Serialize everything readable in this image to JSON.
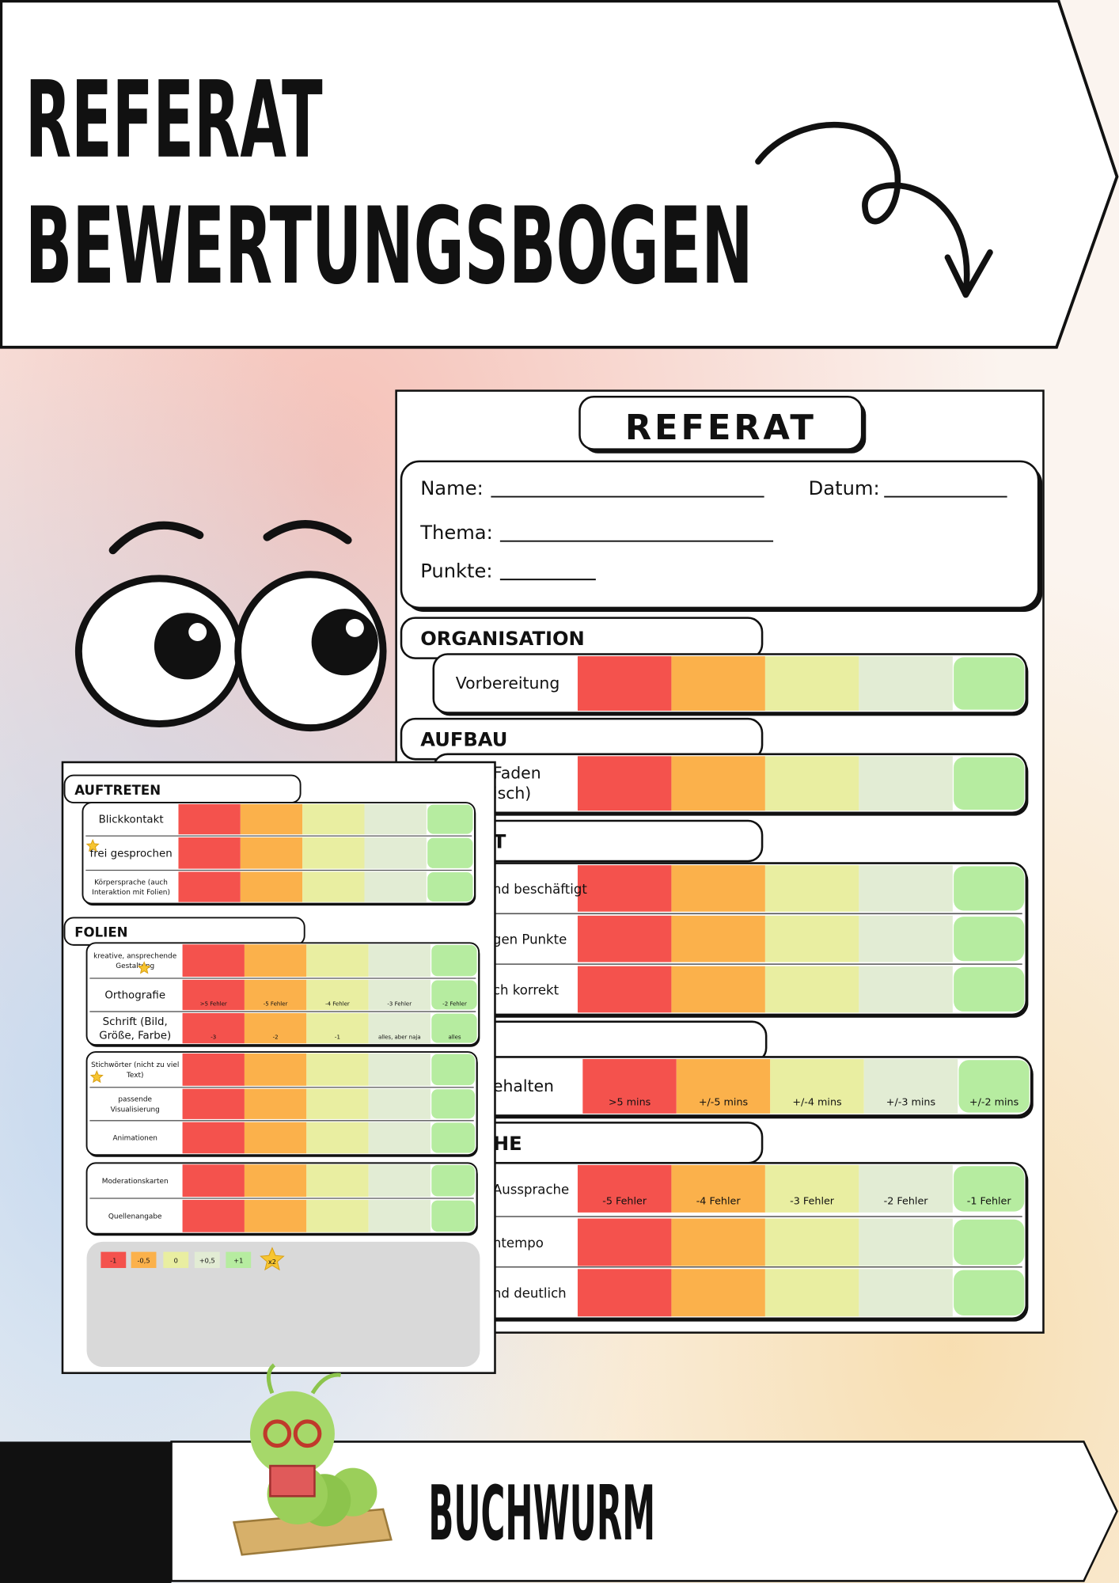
{
  "header": {
    "title_lines": [
      "REFERAT",
      "BEWERTUNGSBOGEN"
    ]
  },
  "back_sheet": {
    "title": "REFERAT",
    "form_fields": [
      "Name:",
      "Datum:",
      "Thema:",
      "Punkte:"
    ],
    "rating_colors": [
      "#f4524d",
      "#fbb14b",
      "#e9eea1",
      "#e2ecd4",
      "#b6eca0"
    ],
    "sections": [
      {
        "heading": "ORGANISATION",
        "rows": [
          {
            "label_lines": [
              "Vorbereitung"
            ]
          }
        ]
      },
      {
        "heading": "AUFBAU",
        "rows": [
          {
            "label_lines": [
              "Faden",
              "isch)"
            ]
          }
        ]
      },
      {
        "heading": "T",
        "rows": [
          {
            "label_lines": [
              "nd beschäftigt"
            ]
          },
          {
            "label_lines": [
              "gen Punkte"
            ]
          },
          {
            "label_lines": [
              "ch korrekt"
            ]
          }
        ]
      },
      {
        "rows": [
          {
            "label_lines": [
              "ehalten"
            ],
            "cells": [
              ">5 mins",
              "+/-5 mins",
              "+/-4 mins",
              "+/-3 mins",
              "+/-2 mins"
            ]
          }
        ]
      },
      {
        "heading": "HE",
        "rows": [
          {
            "label_lines": [
              "Aussprache"
            ],
            "cells": [
              "-5 Fehler",
              "-4 Fehler",
              "-3 Fehler",
              "-2 Fehler",
              "-1 Fehler"
            ]
          },
          {
            "label_lines": [
              "htempo"
            ]
          },
          {
            "label_lines": [
              "nd deutlich"
            ]
          }
        ]
      }
    ]
  },
  "front_sheet": {
    "groups": [
      {
        "heading": "AUFTRETEN",
        "rows": [
          {
            "label_lines": [
              "Blickkontakt"
            ]
          },
          {
            "label_lines": [
              "frei gesprochen"
            ],
            "star": true
          },
          {
            "label_lines": [
              "Körpersprache (auch",
              "Interaktion mit Folien)"
            ],
            "small": true
          }
        ]
      },
      {
        "heading": "FOLIEN",
        "rows": [
          {
            "label_lines": [
              "kreative, ansprechende",
              "Gestaltung"
            ],
            "small": true,
            "star": true
          },
          {
            "label_lines": [
              "Orthografie"
            ],
            "cells": [
              ">5 Fehler",
              "-5 Fehler",
              "-4 Fehler",
              "-3 Fehler",
              "-2 Fehler"
            ]
          },
          {
            "label_lines": [
              "Schrift (Bild,",
              "Größe, Farbe)"
            ],
            "cells": [
              "-3",
              "-2",
              "-1",
              "alles, aber naja",
              "alles"
            ]
          }
        ]
      },
      {
        "rows": [
          {
            "label_lines": [
              "Stichwörter (nicht zu viel",
              "Text)"
            ],
            "small": true,
            "star": true
          },
          {
            "label_lines": [
              "passende",
              "Visualisierung"
            ],
            "small": true
          },
          {
            "label_lines": [
              "Animationen"
            ],
            "small": true
          }
        ]
      },
      {
        "rows": [
          {
            "label_lines": [
              "Moderationskarten"
            ],
            "small": true
          },
          {
            "label_lines": [
              "Quellenangabe"
            ],
            "small": true
          }
        ]
      }
    ],
    "legend": {
      "items": [
        {
          "label": "-1",
          "color": "#f4524d"
        },
        {
          "label": "-0,5",
          "color": "#fbb14b"
        },
        {
          "label": "0",
          "color": "#e9eea1"
        },
        {
          "label": "+0,5",
          "color": "#e2ecd4"
        },
        {
          "label": "+1",
          "color": "#b6eca0"
        }
      ],
      "star_label": "x2"
    }
  },
  "footer": {
    "brand": "BUCHWURM"
  }
}
